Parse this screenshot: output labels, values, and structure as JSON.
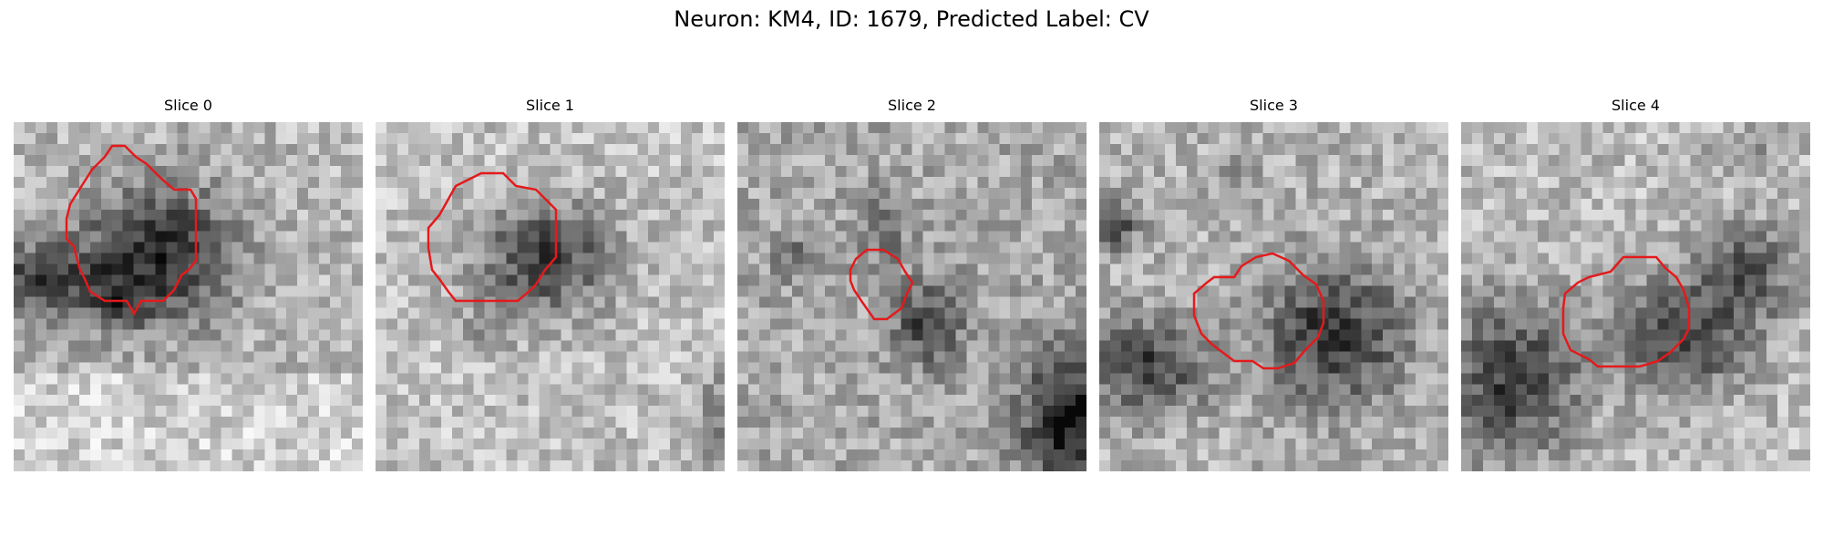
{
  "figure": {
    "title": "Neuron: KM4, ID: 1679, Predicted Label: CV"
  },
  "colors": {
    "contour": "#e41a1c",
    "background": "#ffffff"
  },
  "panels": [
    {
      "title": "Slice 0"
    },
    {
      "title": "Slice 1"
    },
    {
      "title": "Slice 2"
    },
    {
      "title": "Slice 3"
    },
    {
      "title": "Slice 4"
    }
  ]
}
